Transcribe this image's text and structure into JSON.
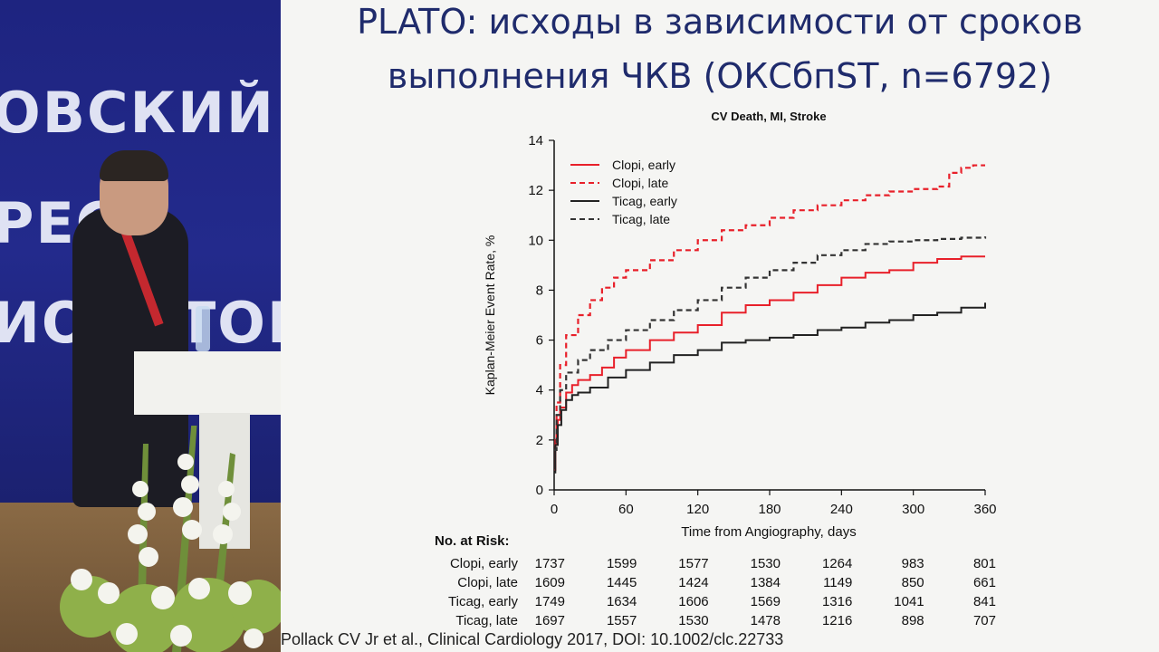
{
  "slide": {
    "title_line1": "PLATO: исходы в зависимости от сроков",
    "title_line2": "выполнения ЧКВ (ОКСбпST, n=6792)",
    "citation": "Pollack CV Jr et al., Clinical Cardiology 2017, DOI: 10.1002/clc.22733"
  },
  "banner": {
    "line1": "ОВСКИЙ",
    "line2": "РЕС",
    "line3": "ИО",
    "line4": "ТОВ"
  },
  "chart_data": {
    "type": "line",
    "title": "CV Death, MI, Stroke",
    "xlabel": "Time from Angiography, days",
    "ylabel": "Kaplan-Meier Event Rate, %",
    "xlim": [
      0,
      360
    ],
    "ylim": [
      0,
      14
    ],
    "xticks": [
      0,
      60,
      120,
      180,
      240,
      300,
      360
    ],
    "yticks": [
      0,
      2,
      4,
      6,
      8,
      10,
      12,
      14
    ],
    "grid": false,
    "legend_position": "top-left",
    "series": [
      {
        "name": "Clopi, early",
        "color": "#e8202a",
        "dash": "solid",
        "points": [
          [
            0,
            0.8
          ],
          [
            1,
            2.0
          ],
          [
            3,
            2.8
          ],
          [
            5,
            3.3
          ],
          [
            10,
            3.9
          ],
          [
            15,
            4.2
          ],
          [
            20,
            4.4
          ],
          [
            30,
            4.6
          ],
          [
            40,
            4.9
          ],
          [
            50,
            5.3
          ],
          [
            60,
            5.6
          ],
          [
            80,
            6.0
          ],
          [
            100,
            6.3
          ],
          [
            120,
            6.6
          ],
          [
            140,
            7.1
          ],
          [
            160,
            7.4
          ],
          [
            180,
            7.6
          ],
          [
            200,
            7.9
          ],
          [
            220,
            8.2
          ],
          [
            240,
            8.5
          ],
          [
            260,
            8.7
          ],
          [
            280,
            8.8
          ],
          [
            300,
            9.1
          ],
          [
            320,
            9.25
          ],
          [
            340,
            9.35
          ],
          [
            360,
            9.35
          ]
        ]
      },
      {
        "name": "Clopi, late",
        "color": "#e8202a",
        "dash": "dashed",
        "points": [
          [
            0,
            1.8
          ],
          [
            2,
            3.5
          ],
          [
            5,
            5.0
          ],
          [
            10,
            6.2
          ],
          [
            20,
            7.0
          ],
          [
            30,
            7.6
          ],
          [
            40,
            8.1
          ],
          [
            50,
            8.5
          ],
          [
            60,
            8.8
          ],
          [
            80,
            9.2
          ],
          [
            100,
            9.6
          ],
          [
            120,
            10.0
          ],
          [
            140,
            10.4
          ],
          [
            160,
            10.6
          ],
          [
            180,
            10.9
          ],
          [
            200,
            11.2
          ],
          [
            220,
            11.4
          ],
          [
            240,
            11.6
          ],
          [
            260,
            11.8
          ],
          [
            280,
            11.95
          ],
          [
            300,
            12.05
          ],
          [
            320,
            12.15
          ],
          [
            330,
            12.7
          ],
          [
            340,
            12.9
          ],
          [
            350,
            13.0
          ],
          [
            360,
            13.0
          ]
        ]
      },
      {
        "name": "Ticag, early",
        "color": "#222222",
        "dash": "solid",
        "points": [
          [
            0,
            0.7
          ],
          [
            1,
            1.8
          ],
          [
            3,
            2.6
          ],
          [
            6,
            3.2
          ],
          [
            10,
            3.6
          ],
          [
            15,
            3.8
          ],
          [
            20,
            3.9
          ],
          [
            30,
            4.1
          ],
          [
            45,
            4.5
          ],
          [
            60,
            4.8
          ],
          [
            80,
            5.1
          ],
          [
            100,
            5.4
          ],
          [
            120,
            5.6
          ],
          [
            140,
            5.9
          ],
          [
            160,
            6.0
          ],
          [
            180,
            6.1
          ],
          [
            200,
            6.2
          ],
          [
            220,
            6.4
          ],
          [
            240,
            6.5
          ],
          [
            260,
            6.7
          ],
          [
            280,
            6.8
          ],
          [
            300,
            7.0
          ],
          [
            320,
            7.1
          ],
          [
            340,
            7.3
          ],
          [
            360,
            7.5
          ]
        ]
      },
      {
        "name": "Ticag, late",
        "color": "#333333",
        "dash": "dashed",
        "points": [
          [
            0,
            1.6
          ],
          [
            2,
            3.0
          ],
          [
            5,
            4.0
          ],
          [
            10,
            4.7
          ],
          [
            20,
            5.2
          ],
          [
            30,
            5.6
          ],
          [
            45,
            6.0
          ],
          [
            60,
            6.4
          ],
          [
            80,
            6.8
          ],
          [
            100,
            7.2
          ],
          [
            120,
            7.6
          ],
          [
            140,
            8.1
          ],
          [
            160,
            8.5
          ],
          [
            180,
            8.8
          ],
          [
            200,
            9.1
          ],
          [
            220,
            9.4
          ],
          [
            240,
            9.6
          ],
          [
            260,
            9.85
          ],
          [
            280,
            9.95
          ],
          [
            300,
            10.0
          ],
          [
            320,
            10.05
          ],
          [
            340,
            10.1
          ],
          [
            360,
            10.15
          ]
        ]
      }
    ],
    "risk_table": {
      "header": "No. at Risk:",
      "rows": [
        {
          "label": "Clopi, early",
          "values": [
            1737,
            1599,
            1577,
            1530,
            1264,
            983,
            801
          ]
        },
        {
          "label": "Clopi, late",
          "values": [
            1609,
            1445,
            1424,
            1384,
            1149,
            850,
            661
          ]
        },
        {
          "label": "Ticag, early",
          "values": [
            1749,
            1634,
            1606,
            1569,
            1316,
            1041,
            841
          ]
        },
        {
          "label": "Ticag, late",
          "values": [
            1697,
            1557,
            1530,
            1478,
            1216,
            898,
            707
          ]
        }
      ]
    }
  }
}
